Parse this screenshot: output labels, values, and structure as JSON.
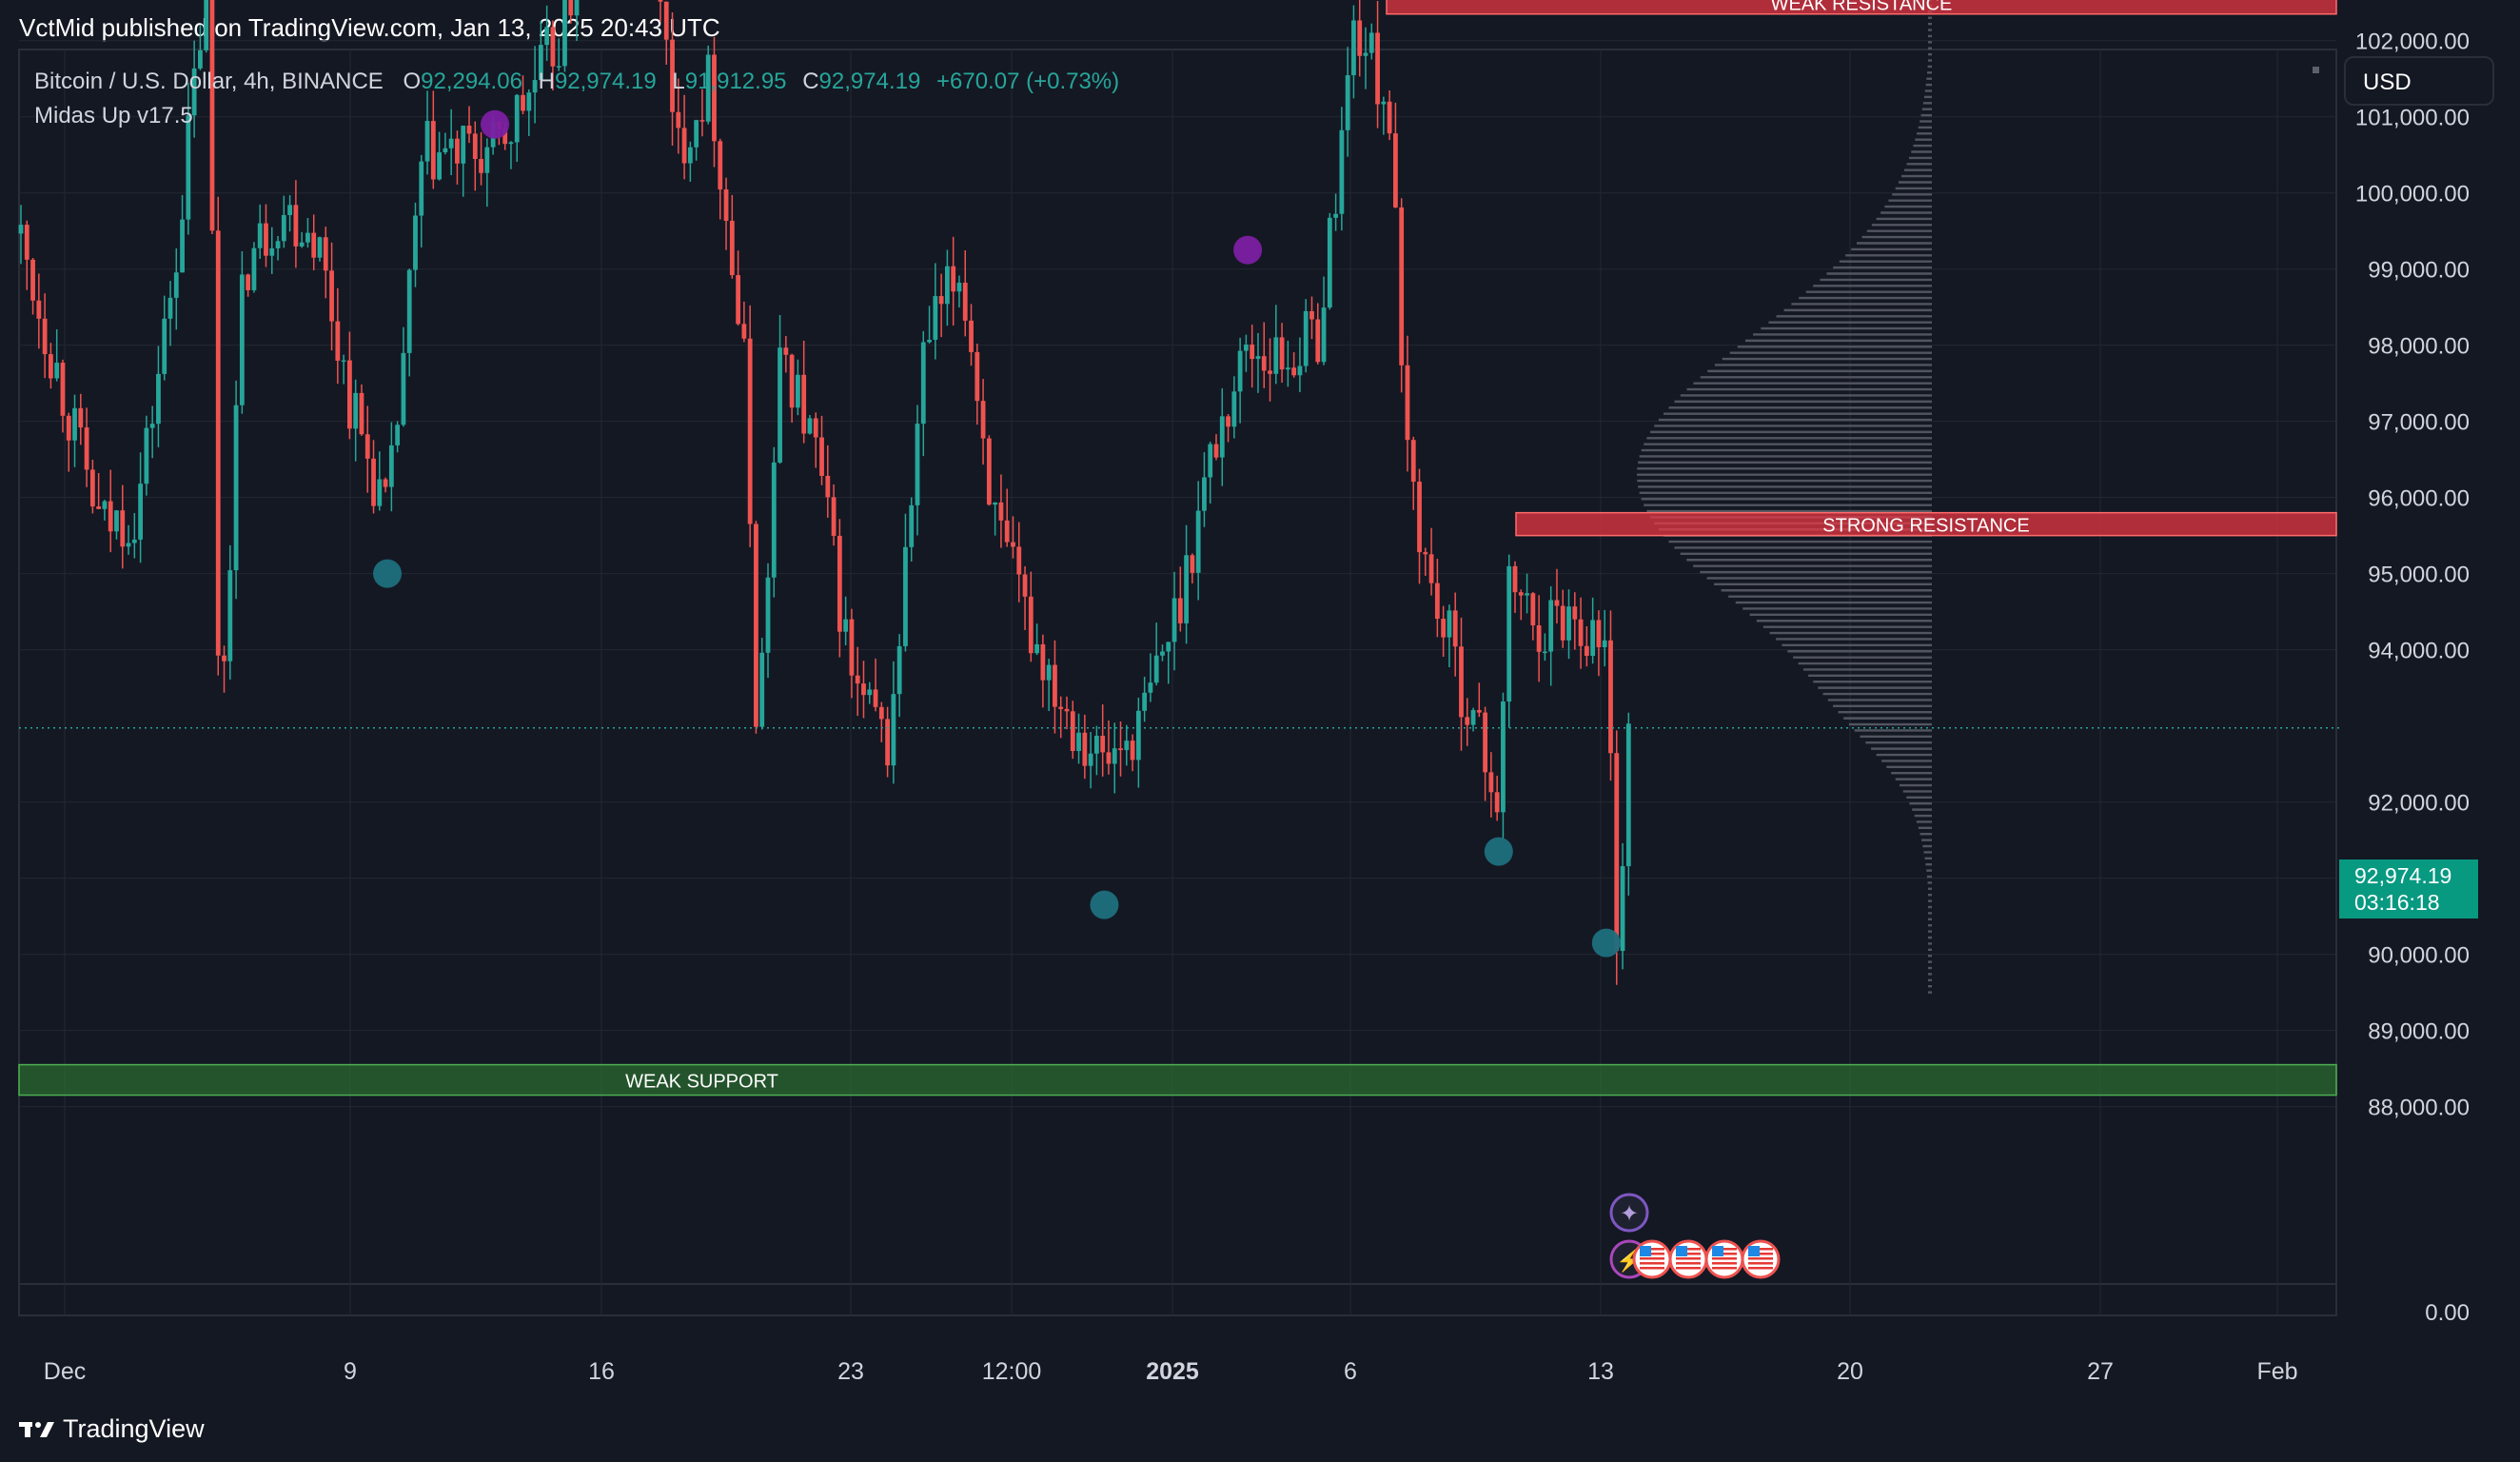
{
  "header": {
    "publisher_line": "VctMid published on TradingView.com, Jan 13, 2025 20:43 UTC"
  },
  "legend": {
    "symbol": "Bitcoin / U.S. Dollar, 4h, BINANCE",
    "o_label": "O",
    "o_value": "92,294.06",
    "h_label": "H",
    "h_value": "92,974.19",
    "l_label": "L",
    "l_value": "91,912.95",
    "c_label": "C",
    "c_value": "92,974.19",
    "change": "+670.07 (+0.73%)",
    "indicator": "Midas Up v17.5"
  },
  "currency_button": "USD",
  "last_price": {
    "price": "92,974.19",
    "countdown": "03:16:18"
  },
  "footer": {
    "brand": "TradingView",
    "logo_icon": "tradingview-logo-icon"
  },
  "colors": {
    "up": "#26a69a",
    "down": "#ef5350",
    "resistance": "#f23645",
    "support": "#2e7d32",
    "background": "#141823",
    "grid": "#232733",
    "pivot_high": "#7b1fa2",
    "pivot_low": "#1e6f7e"
  },
  "chart_data": {
    "type": "candlestick",
    "symbol": "BTCUSD",
    "interval": "4h",
    "y_axis_labels": [
      "102,000.00",
      "101,000.00",
      "100,000.00",
      "99,000.00",
      "98,000.00",
      "97,000.00",
      "96,000.00",
      "95,000.00",
      "94,000.00",
      "92,000.00",
      "91,000.00",
      "90,000.00",
      "89,000.00",
      "88,000.00",
      "0.00"
    ],
    "x_axis_labels": [
      {
        "label": "Dec",
        "bold": false
      },
      {
        "label": "9",
        "bold": false
      },
      {
        "label": "16",
        "bold": false
      },
      {
        "label": "23",
        "bold": false
      },
      {
        "label": "12:00",
        "bold": false
      },
      {
        "label": "2025",
        "bold": true
      },
      {
        "label": "6",
        "bold": false
      },
      {
        "label": "13",
        "bold": false
      },
      {
        "label": "20",
        "bold": false
      },
      {
        "label": "27",
        "bold": false
      },
      {
        "label": "Feb",
        "bold": false
      }
    ],
    "ylim": [
      88100,
      103300
    ],
    "zones": [
      {
        "label": "WEAK RESISTANCE",
        "type": "resistance",
        "from": 102350,
        "to": 102650,
        "start": "Jan 6"
      },
      {
        "label": "STRONG RESISTANCE",
        "type": "resistance",
        "from": 95500,
        "to": 95800,
        "start": "Jan 10"
      },
      {
        "label": "WEAK SUPPORT",
        "type": "support",
        "from": 88150,
        "to": 88550,
        "start": "Dec 1"
      }
    ],
    "pivot_markers": [
      {
        "kind": "high",
        "date": "Dec 13",
        "price": 100900
      },
      {
        "kind": "high",
        "date": "Jan 3",
        "price": 99250
      },
      {
        "kind": "low",
        "date": "Dec 10",
        "price": 95000
      },
      {
        "kind": "low",
        "date": "Dec 30",
        "price": 90650
      },
      {
        "kind": "low",
        "date": "Jan 10",
        "price": 91350
      },
      {
        "kind": "low",
        "date": "Jan 13",
        "price": 90150
      }
    ],
    "event_icons": [
      "star-event-icon",
      "lightning-event-icon",
      "us-flag-icon",
      "us-flag-icon",
      "us-flag-icon",
      "us-flag-icon"
    ],
    "path": [
      {
        "date": "Dec 1",
        "price": 97300
      },
      {
        "date": "Dec 2",
        "price": 95600
      },
      {
        "date": "Dec 3",
        "price": 95800
      },
      {
        "date": "Dec 4",
        "price": 98800
      },
      {
        "date": "Dec 5",
        "price": 103000
      },
      {
        "date": "Dec 5",
        "price": 92800
      },
      {
        "date": "Dec 6",
        "price": 99000
      },
      {
        "date": "Dec 7",
        "price": 99800
      },
      {
        "date": "Dec 8",
        "price": 99500
      },
      {
        "date": "Dec 9",
        "price": 97200
      },
      {
        "date": "Dec 10",
        "price": 95700
      },
      {
        "date": "Dec 11",
        "price": 100500
      },
      {
        "date": "Dec 12",
        "price": 100500
      },
      {
        "date": "Dec 13",
        "price": 100500
      },
      {
        "date": "Dec 15",
        "price": 102200
      },
      {
        "date": "Dec 16",
        "price": 105500
      },
      {
        "date": "Dec 17",
        "price": 106500
      },
      {
        "date": "Dec 18",
        "price": 100500
      },
      {
        "date": "Dec 19",
        "price": 101500
      },
      {
        "date": "Dec 20",
        "price": 97500
      },
      {
        "date": "Dec 20",
        "price": 92800
      },
      {
        "date": "Dec 21",
        "price": 98000
      },
      {
        "date": "Dec 22",
        "price": 96500
      },
      {
        "date": "Dec 23",
        "price": 93500
      },
      {
        "date": "Dec 24",
        "price": 92700
      },
      {
        "date": "Dec 25",
        "price": 98000
      },
      {
        "date": "Dec 26",
        "price": 99000
      },
      {
        "date": "Dec 27",
        "price": 95500
      },
      {
        "date": "Dec 28",
        "price": 94200
      },
      {
        "date": "Dec 29",
        "price": 93200
      },
      {
        "date": "Dec 30",
        "price": 92500
      },
      {
        "date": "Dec 31",
        "price": 93000
      },
      {
        "date": "Jan 1",
        "price": 94500
      },
      {
        "date": "Jan 2",
        "price": 96600
      },
      {
        "date": "Jan 3",
        "price": 98000
      },
      {
        "date": "Jan 4",
        "price": 97800
      },
      {
        "date": "Jan 5",
        "price": 98200
      },
      {
        "date": "Jan 6",
        "price": 102300
      },
      {
        "date": "Jan 7",
        "price": 101000
      },
      {
        "date": "Jan 7",
        "price": 97000
      },
      {
        "date": "Jan 8",
        "price": 95000
      },
      {
        "date": "Jan 9",
        "price": 93500
      },
      {
        "date": "Jan 10",
        "price": 92000
      },
      {
        "date": "Jan 10",
        "price": 95000
      },
      {
        "date": "Jan 11",
        "price": 94300
      },
      {
        "date": "Jan 12",
        "price": 94500
      },
      {
        "date": "Jan 13",
        "price": 94000
      },
      {
        "date": "Jan 13",
        "price": 90000
      },
      {
        "date": "Jan 13",
        "price": 92974
      }
    ]
  }
}
